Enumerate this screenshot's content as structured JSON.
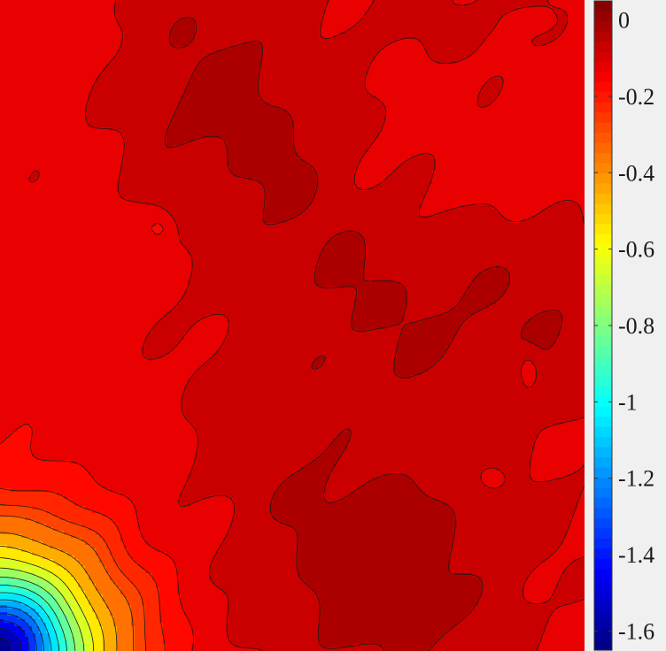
{
  "chart_data": {
    "type": "heatmap",
    "style": "filled-contour",
    "title": "",
    "xlabel": "",
    "ylabel": "",
    "colormap": "jet",
    "clim": [
      -1.65,
      0.05
    ],
    "grid": false,
    "legend": "colorbar-right",
    "colorbar_ticks": [
      {
        "value": 0,
        "label": "0"
      },
      {
        "value": -0.2,
        "label": "-0.2"
      },
      {
        "value": -0.4,
        "label": "-0.4"
      },
      {
        "value": -0.6,
        "label": "-0.6"
      },
      {
        "value": -0.8,
        "label": "-0.8"
      },
      {
        "value": -1,
        "label": "-1"
      },
      {
        "value": -1.2,
        "label": "-1.2"
      },
      {
        "value": -1.4,
        "label": "-1.4"
      },
      {
        "value": -1.6,
        "label": "-1.6"
      }
    ],
    "contour_levels": [
      -1.6,
      -1.5,
      -1.4,
      -1.3,
      -1.2,
      -1.1,
      -1.0,
      -0.9,
      -0.8,
      -0.7,
      -0.6,
      -0.5,
      -0.4,
      -0.3,
      -0.25,
      -0.2,
      -0.15,
      -0.1,
      -0.05,
      0.0
    ],
    "field_value_range": [
      -1.65,
      0.02
    ],
    "colors": {
      "background": "#f0f0f0",
      "contour_line": "#1a1a1a"
    }
  }
}
